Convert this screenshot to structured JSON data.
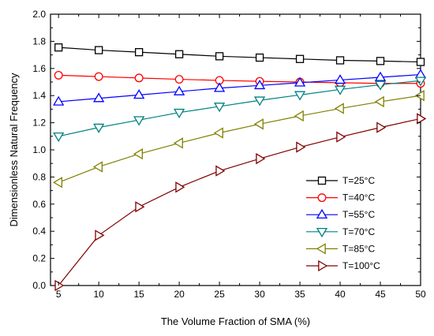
{
  "chart_data": {
    "type": "line",
    "title": "",
    "xlabel": "The Volume Fraction of SMA (%)",
    "ylabel": "Dimensionless Natural Frequency",
    "xlim": [
      4,
      50
    ],
    "ylim": [
      0.0,
      2.0
    ],
    "x_ticks": [
      5,
      10,
      15,
      20,
      25,
      30,
      35,
      40,
      45,
      50
    ],
    "y_ticks": [
      0.0,
      0.2,
      0.4,
      0.6,
      0.8,
      1.0,
      1.2,
      1.4,
      1.6,
      1.8,
      2.0
    ],
    "y_tick_labels": [
      "0.0",
      "0.2",
      "0.4",
      "0.6",
      "0.8",
      "1.0",
      "1.2",
      "1.4",
      "1.6",
      "1.8",
      "2.0"
    ],
    "grid": false,
    "legend_position": "bottom-right",
    "x": [
      5,
      10,
      15,
      20,
      25,
      30,
      35,
      40,
      45,
      50
    ],
    "series": [
      {
        "name": "T=25°C",
        "marker": "square",
        "color": "#000000",
        "values": [
          1.755,
          1.735,
          1.72,
          1.705,
          1.69,
          1.68,
          1.67,
          1.66,
          1.655,
          1.648
        ]
      },
      {
        "name": "T=40°C",
        "marker": "circle",
        "color": "#ff0000",
        "values": [
          1.55,
          1.54,
          1.53,
          1.52,
          1.512,
          1.505,
          1.5,
          1.495,
          1.49,
          1.49
        ]
      },
      {
        "name": "T=55°C",
        "marker": "triangle-up",
        "color": "#0000ff",
        "values": [
          1.355,
          1.38,
          1.405,
          1.43,
          1.455,
          1.475,
          1.495,
          1.515,
          1.535,
          1.555
        ]
      },
      {
        "name": "T=70°C",
        "marker": "triangle-down",
        "color": "#008080",
        "values": [
          1.1,
          1.165,
          1.22,
          1.275,
          1.32,
          1.365,
          1.405,
          1.445,
          1.48,
          1.51
        ]
      },
      {
        "name": "T=85°C",
        "marker": "triangle-left",
        "color": "#808000",
        "values": [
          0.76,
          0.875,
          0.97,
          1.05,
          1.125,
          1.19,
          1.25,
          1.305,
          1.355,
          1.4
        ]
      },
      {
        "name": "T=100°C",
        "marker": "triangle-right",
        "color": "#800000",
        "values": [
          0.0,
          0.37,
          0.58,
          0.725,
          0.845,
          0.935,
          1.02,
          1.095,
          1.165,
          1.23
        ]
      }
    ]
  }
}
